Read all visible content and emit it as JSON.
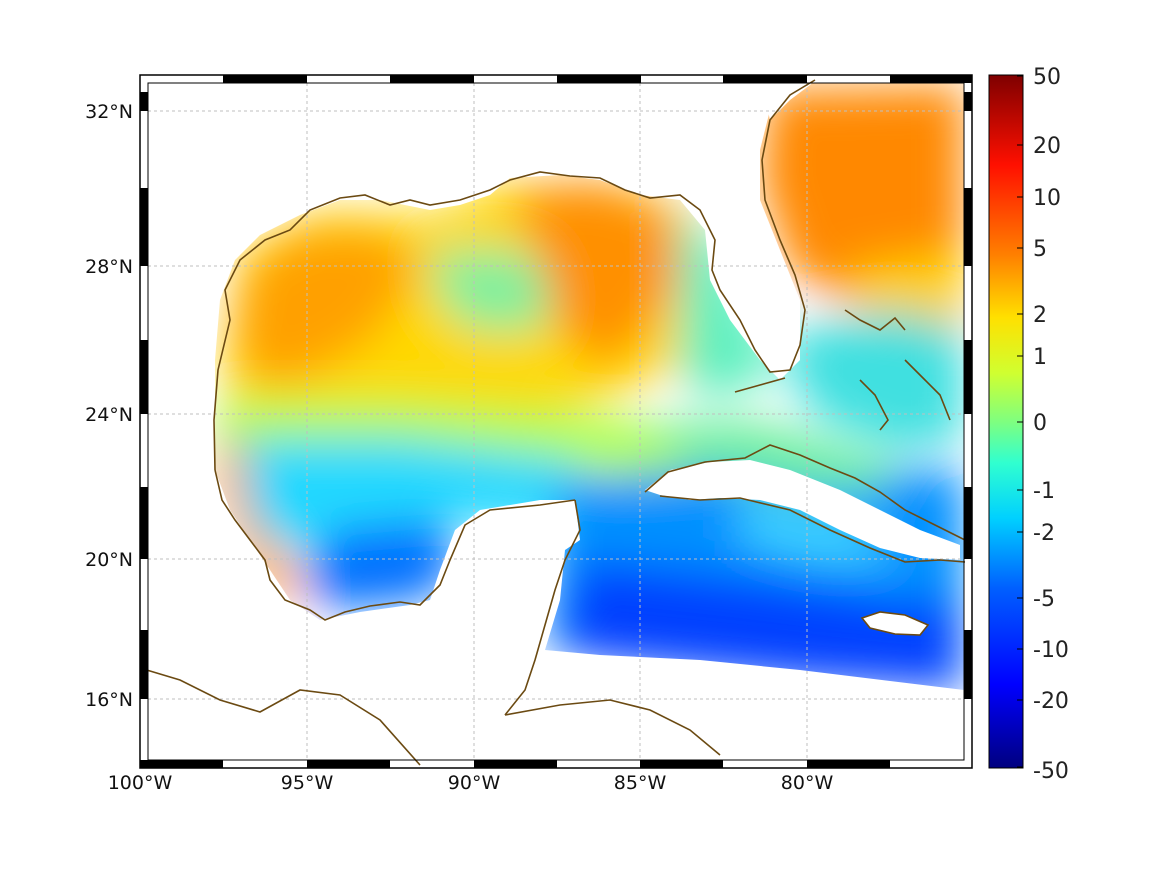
{
  "map": {
    "lon_range": [
      -100,
      -75
    ],
    "lat_range": [
      14.4,
      32.8
    ],
    "projection": "mercator",
    "grid": true,
    "frame_style": "alternating black/white border"
  },
  "axes": {
    "lon_ticks": [
      {
        "value": -100,
        "label": "100°W"
      },
      {
        "value": -95,
        "label": "95°W"
      },
      {
        "value": -90,
        "label": "90°W"
      },
      {
        "value": -85,
        "label": "85°W"
      },
      {
        "value": -80,
        "label": "80°W"
      }
    ],
    "lat_ticks": [
      {
        "value": 32,
        "label": "32°N"
      },
      {
        "value": 28,
        "label": "28°N"
      },
      {
        "value": 24,
        "label": "24°N"
      },
      {
        "value": 20,
        "label": "20°N"
      },
      {
        "value": 16,
        "label": "16°N"
      }
    ]
  },
  "colorbar": {
    "colormap": "jet",
    "scale": "symmetric-log",
    "ticks": [
      "50",
      "20",
      "10",
      "5",
      "2",
      "1",
      "0",
      "-1",
      "-2",
      "-5",
      "-10",
      "-20",
      "-50"
    ]
  },
  "colors": {
    "coastline": "#6b4a12",
    "grid": "#bfbfbf",
    "frame": "#000000"
  }
}
